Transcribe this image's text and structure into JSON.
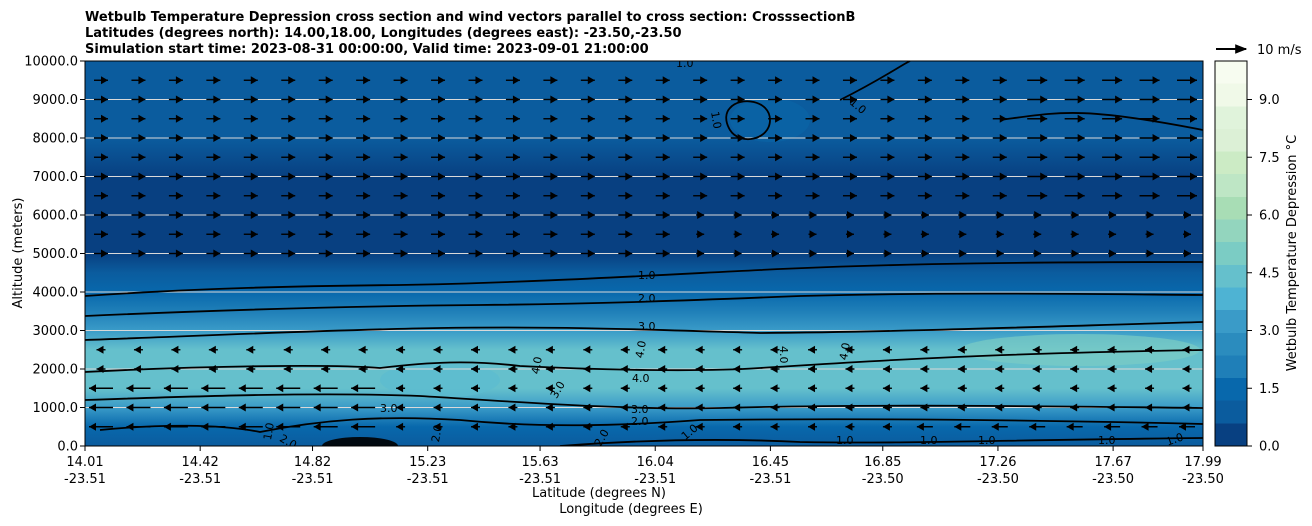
{
  "chart_data": {
    "type": "heatmap",
    "title": [
      "Wetbulb Temperature Depression cross section and wind vectors parallel to cross section: CrosssectionB",
      "Latitudes (degrees north): 14.00,18.00, Longitudes (degrees east): -23.50,-23.50",
      "Simulation start time: 2023-08-31 00:00:00, Valid time: 2023-09-01 21:00:00"
    ],
    "ylabel": "Altitude (meters)",
    "xlabel": "Latitude (degrees N)",
    "xlabel2": "Longitude (degrees E)",
    "ylim": [
      0,
      10000
    ],
    "yticks": [
      "0.0",
      "1000.0",
      "2000.0",
      "3000.0",
      "4000.0",
      "5000.0",
      "6000.0",
      "7000.0",
      "8000.0",
      "9000.0",
      "10000.0"
    ],
    "ytick_values": [
      0,
      1000,
      2000,
      3000,
      4000,
      5000,
      6000,
      7000,
      8000,
      9000,
      10000
    ],
    "xticks_lat": [
      "14.01",
      "14.42",
      "14.82",
      "15.23",
      "15.63",
      "16.04",
      "16.45",
      "16.85",
      "17.26",
      "17.67",
      "17.99"
    ],
    "xticks_lon": [
      "-23.51",
      "-23.51",
      "-23.51",
      "-23.51",
      "-23.51",
      "-23.51",
      "-23.51",
      "-23.50",
      "-23.50",
      "-23.50",
      "-23.50"
    ],
    "xtick_values": [
      14.01,
      14.42,
      14.82,
      15.23,
      15.63,
      16.04,
      16.45,
      16.85,
      17.26,
      17.67,
      17.99
    ],
    "xlim": [
      14.01,
      17.99
    ],
    "grid": "horizontal",
    "colorbar": {
      "label": "Wetbulb Temperature Depression °C",
      "range": [
        0,
        10
      ],
      "ticks": [
        "0.0",
        "1.5",
        "3.0",
        "4.5",
        "6.0",
        "7.5",
        "9.0"
      ],
      "tick_values": [
        0,
        1.5,
        3,
        4.5,
        6,
        7.5,
        9
      ],
      "colors": [
        "#084081",
        "#0b5c9e",
        "#0868ac",
        "#1f7fb8",
        "#2b8cbe",
        "#3a9bc8",
        "#4eb3d3",
        "#65c0cc",
        "#7bccc4",
        "#93d5be",
        "#a8ddb5",
        "#bee6c5",
        "#ccebc5",
        "#dcf0d6",
        "#e0f3db",
        "#f0f9e8",
        "#f7fcf0"
      ]
    },
    "wind_key": {
      "label": "10 m/s",
      "speed": 10
    },
    "contour_levels": [
      1.0,
      2.0,
      3.0,
      4.0
    ],
    "contour_labels": [
      "1.0",
      "2.0",
      "3.0",
      "1.0",
      "1.0",
      "1.0",
      "4.0",
      "4.0",
      "4.0",
      "4.0",
      "3.0",
      "2.0",
      "1.0",
      "1.0",
      "1.0",
      "1.0",
      "1.0",
      "1.0",
      "2.0",
      "3.0",
      "4.0",
      "3.0",
      "2.0",
      "1.0",
      "2.0"
    ],
    "bands": [
      {
        "z": 0,
        "t": 0.7
      },
      {
        "z": 500,
        "t": 1.5
      },
      {
        "z": 1000,
        "t": 3.4
      },
      {
        "z": 1500,
        "t": 4.3
      },
      {
        "z": 2000,
        "t": 4.6
      },
      {
        "z": 2500,
        "t": 4.2
      },
      {
        "z": 3000,
        "t": 3.0
      },
      {
        "z": 3500,
        "t": 2.2
      },
      {
        "z": 4000,
        "t": 1.4
      },
      {
        "z": 4500,
        "t": 0.8
      },
      {
        "z": 5000,
        "t": 0.4
      },
      {
        "z": 6000,
        "t": 0.2
      },
      {
        "z": 7000,
        "t": 0.3
      },
      {
        "z": 8000,
        "t": 0.7
      },
      {
        "z": 9000,
        "t": 0.8
      },
      {
        "z": 10000,
        "t": 0.6
      }
    ],
    "wind_levels_upper": [
      9500,
      9000,
      8500,
      8000,
      7500,
      7000,
      6500,
      6000,
      5500,
      5000
    ],
    "wind_levels_lower": [
      2500,
      2000,
      1500,
      1000,
      500
    ]
  }
}
